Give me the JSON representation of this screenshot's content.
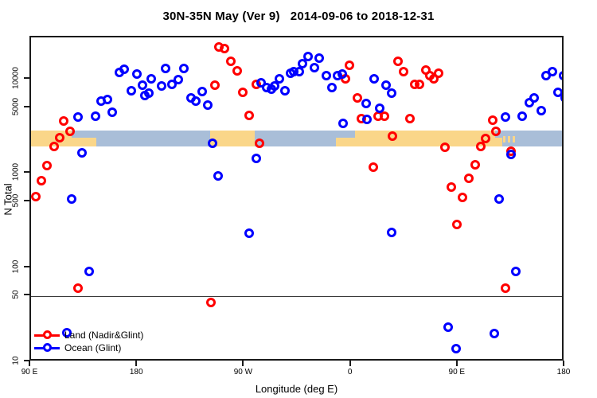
{
  "chart_data": {
    "type": "scatter",
    "title": "30N-35N May (Ver 9)   2014-09-06 to 2018-12-31",
    "xlabel": "Longitude (deg E)",
    "ylabel": "N Total",
    "x_axis": {
      "range_deg": [
        90,
        540
      ],
      "ticks": [
        {
          "lon": 90,
          "label": "90 E"
        },
        {
          "lon": 180,
          "label": "180"
        },
        {
          "lon": 270,
          "label": "90 W"
        },
        {
          "lon": 360,
          "label": "0"
        },
        {
          "lon": 450,
          "label": "90 E"
        },
        {
          "lon": 540,
          "label": "180"
        }
      ]
    },
    "y_axis": {
      "scale": "log",
      "range": [
        10,
        28000
      ],
      "ticks": [
        {
          "value": 10000,
          "label": "10000"
        },
        {
          "value": 5000,
          "label": "5000"
        },
        {
          "value": 1000,
          "label": "1000"
        },
        {
          "value": 500,
          "label": "500"
        },
        {
          "value": 100,
          "label": "100"
        },
        {
          "value": 50,
          "label": "50"
        },
        {
          "value": 10,
          "label": "10"
        }
      ]
    },
    "reference_line_value": 50,
    "map_band": {
      "description": "30N-35N land/ocean strip",
      "top_value": 2880,
      "bottom_value": 1950,
      "ocean_color": "#A9BED8",
      "land_color": "#FAD689",
      "land_segments": [
        {
          "lon0": 90,
          "lon1": 124,
          "part": "full"
        },
        {
          "lon0": 124,
          "lon1": 145,
          "part": "bottom"
        },
        {
          "lon0": 241,
          "lon1": 278.5,
          "part": "full"
        },
        {
          "lon0": 347,
          "lon1": 363,
          "part": "bottom"
        },
        {
          "lon0": 363,
          "lon1": 481,
          "part": "full"
        },
        {
          "lon0": 481,
          "lon1": 487,
          "part": "bottom"
        },
        {
          "lon0": 488,
          "lon1": 490,
          "part": "speckle"
        },
        {
          "lon0": 492,
          "lon1": 494,
          "part": "speckle"
        },
        {
          "lon0": 496,
          "lon1": 498,
          "part": "speckle"
        }
      ]
    },
    "legend": {
      "position": "bottom-left"
    },
    "series": [
      {
        "name": "Land (Nadir&Glint)",
        "color": "#FF0000",
        "points": [
          [
            117.5,
            3640
          ],
          [
            122.9,
            2830
          ],
          [
            114.2,
            2420
          ],
          [
            109.5,
            1950
          ],
          [
            103.4,
            1225
          ],
          [
            98.7,
            845
          ],
          [
            94.0,
            573
          ],
          [
            129.6,
            61
          ],
          [
            241.6,
            43
          ],
          [
            248.3,
            22000
          ],
          [
            253.0,
            21500
          ],
          [
            258.4,
            15700
          ],
          [
            263.7,
            12400
          ],
          [
            244.9,
            8750
          ],
          [
            268.4,
            7340
          ],
          [
            279.8,
            8920
          ],
          [
            273.8,
            4170
          ],
          [
            282.5,
            2110
          ],
          [
            358.3,
            14200
          ],
          [
            354.9,
            10200
          ],
          [
            365.0,
            6410
          ],
          [
            368.4,
            3860
          ],
          [
            382.4,
            4090
          ],
          [
            387.8,
            4090
          ],
          [
            399.2,
            15700
          ],
          [
            403.9,
            12200
          ],
          [
            413.3,
            8920
          ],
          [
            417.3,
            8920
          ],
          [
            409.3,
            3860
          ],
          [
            422.7,
            12600
          ],
          [
            426.0,
            11000
          ],
          [
            394.5,
            2520
          ],
          [
            378.4,
            1180
          ],
          [
            433.4,
            11800
          ],
          [
            429.4,
            10200
          ],
          [
            479.0,
            3720
          ],
          [
            481.7,
            2830
          ],
          [
            473.0,
            2380
          ],
          [
            469.0,
            1950
          ],
          [
            438.8,
            1930
          ],
          [
            494.5,
            1740
          ],
          [
            464.3,
            1250
          ],
          [
            458.9,
            900
          ],
          [
            444.1,
            725
          ],
          [
            453.5,
            560
          ],
          [
            448.8,
            290
          ],
          [
            489.8,
            61
          ]
        ]
      },
      {
        "name": "Ocean (Glint)",
        "color": "#0000FF",
        "points": [
          [
            164.5,
            11900
          ],
          [
            168.5,
            12900
          ],
          [
            179.2,
            11500
          ],
          [
            191.3,
            10200
          ],
          [
            183.9,
            8750
          ],
          [
            185.9,
            6840
          ],
          [
            174.5,
            7680
          ],
          [
            189.3,
            7230
          ],
          [
            203.5,
            13100
          ],
          [
            199.8,
            8600
          ],
          [
            154.4,
            6160
          ],
          [
            149.0,
            5920
          ],
          [
            158.4,
            4510
          ],
          [
            144.3,
            4090
          ],
          [
            129.6,
            4010
          ],
          [
            132.9,
            1670
          ],
          [
            218.8,
            13100
          ],
          [
            208.7,
            8920
          ],
          [
            214.1,
            10000
          ],
          [
            224.8,
            6430
          ],
          [
            228.8,
            5920
          ],
          [
            234.2,
            7530
          ],
          [
            238.9,
            5370
          ],
          [
            283.8,
            9270
          ],
          [
            288.5,
            8260
          ],
          [
            292.6,
            7990
          ],
          [
            295.2,
            8600
          ],
          [
            299.3,
            10200
          ],
          [
            304.0,
            7680
          ],
          [
            308.7,
            11700
          ],
          [
            311.3,
            12200
          ],
          [
            242.9,
            2110
          ],
          [
            279.8,
            1450
          ],
          [
            318.7,
            14800
          ],
          [
            323.4,
            17700
          ],
          [
            332.8,
            17000
          ],
          [
            316.0,
            12200
          ],
          [
            328.8,
            13400
          ],
          [
            338.8,
            11000
          ],
          [
            343.5,
            8260
          ],
          [
            348.2,
            11000
          ],
          [
            352.2,
            11500
          ],
          [
            379.1,
            10200
          ],
          [
            389.2,
            8750
          ],
          [
            393.9,
            7140
          ],
          [
            372.4,
            5550
          ],
          [
            383.8,
            4930
          ],
          [
            373.1,
            3790
          ],
          [
            353.0,
            3420
          ],
          [
            524.0,
            11000
          ],
          [
            529.3,
            12200
          ],
          [
            538.7,
            11000
          ],
          [
            534.0,
            7340
          ],
          [
            513.9,
            6430
          ],
          [
            509.9,
            5740
          ],
          [
            520.0,
            4640
          ],
          [
            503.9,
            4090
          ],
          [
            489.8,
            4010
          ],
          [
            494.5,
            1610
          ],
          [
            540.0,
            6430
          ],
          [
            124.2,
            540
          ],
          [
            247.6,
            950
          ],
          [
            273.8,
            234
          ],
          [
            393.5,
            240
          ],
          [
            484.4,
            540
          ],
          [
            139.0,
            92
          ],
          [
            120.2,
            20.5
          ],
          [
            498.6,
            92
          ],
          [
            441.5,
            23.5
          ],
          [
            480.4,
            20
          ],
          [
            448.2,
            14
          ]
        ]
      }
    ]
  }
}
